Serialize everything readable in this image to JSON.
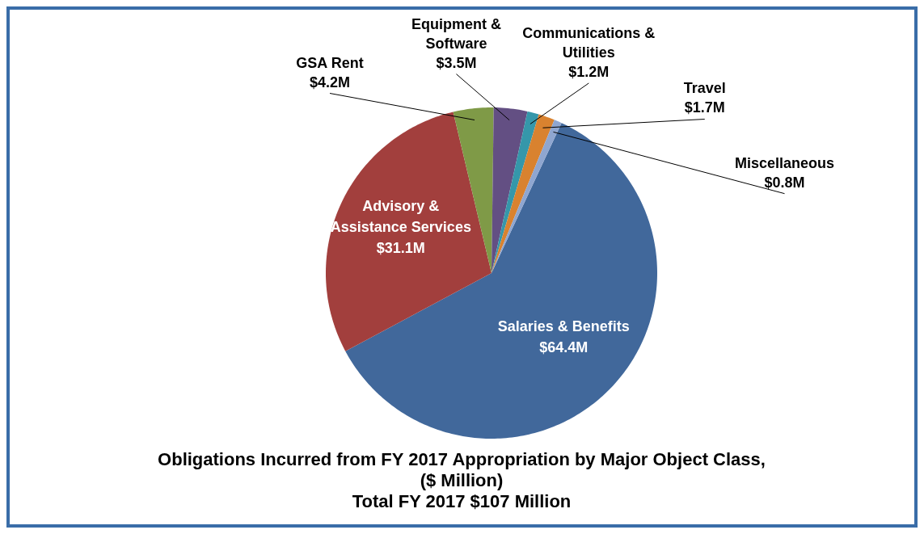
{
  "chart_data": {
    "type": "pie",
    "title": "Obligations Incurred from FY 2017 Appropriation by Major Object Class, ($ Million)",
    "subtitle": "Total FY 2017 $107 Million",
    "categories": [
      "Salaries & Benefits",
      "Advisory & Assistance Services",
      "GSA Rent",
      "Equipment & Software",
      "Communications & Utilities",
      "Travel",
      "Miscellaneous"
    ],
    "values": [
      64.4,
      31.1,
      4.2,
      3.5,
      1.2,
      1.7,
      0.8
    ],
    "value_labels": [
      "$64.4M",
      "$31.1M",
      "$4.2M",
      "$3.5M",
      "$1.2M",
      "$1.7M",
      "$0.8M"
    ],
    "colors": [
      "#41689b",
      "#a23f3d",
      "#7f9a47",
      "#634f83",
      "#3597aa",
      "#d9822f",
      "#8fa6d0"
    ]
  }
}
